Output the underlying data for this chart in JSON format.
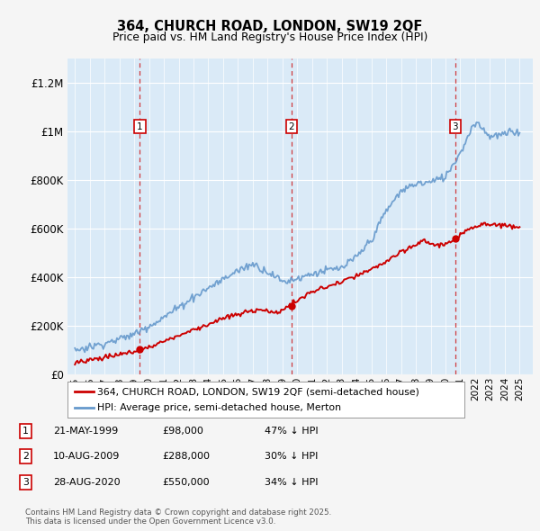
{
  "title": "364, CHURCH ROAD, LONDON, SW19 2QF",
  "subtitle": "Price paid vs. HM Land Registry's House Price Index (HPI)",
  "red_label": "364, CHURCH ROAD, LONDON, SW19 2QF (semi-detached house)",
  "blue_label": "HPI: Average price, semi-detached house, Merton",
  "transactions": [
    {
      "num": 1,
      "date": "21-MAY-1999",
      "price": 98000,
      "x_year": 1999.38,
      "pct": "47% ↓ HPI"
    },
    {
      "num": 2,
      "date": "10-AUG-2009",
      "price": 288000,
      "x_year": 2009.61,
      "pct": "30% ↓ HPI"
    },
    {
      "num": 3,
      "date": "28-AUG-2020",
      "price": 550000,
      "x_year": 2020.66,
      "pct": "34% ↓ HPI"
    }
  ],
  "footnote": "Contains HM Land Registry data © Crown copyright and database right 2025.\nThis data is licensed under the Open Government Licence v3.0.",
  "ylim": [
    0,
    1300000
  ],
  "yticks": [
    0,
    200000,
    400000,
    600000,
    800000,
    1000000,
    1200000
  ],
  "ytick_labels": [
    "£0",
    "£200K",
    "£400K",
    "£600K",
    "£800K",
    "£1M",
    "£1.2M"
  ],
  "bg_color": "#daeaf7",
  "red_color": "#cc0000",
  "blue_color": "#6699cc",
  "grid_color": "#ffffff",
  "fig_bg": "#f5f5f5",
  "xlim_left": 1994.5,
  "xlim_right": 2025.9
}
